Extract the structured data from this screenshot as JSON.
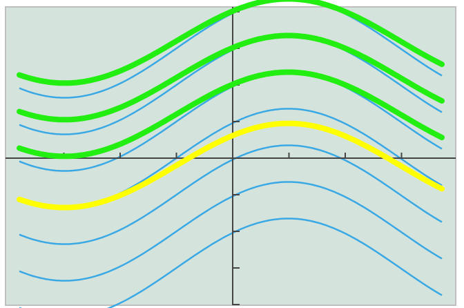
{
  "colors": {
    "background": "#d4e4dc",
    "frame": "#bfbfbf",
    "axis": "#444444",
    "blue_curve": "#3aa8e4",
    "green_highlight": "#22ee11",
    "yellow_highlight": "#ffff00"
  },
  "chart_data": {
    "type": "line",
    "title": "",
    "xlabel": "",
    "ylabel": "",
    "xlim": [
      -4,
      4
    ],
    "ylim": [
      -4,
      4
    ],
    "grid": false,
    "legend": "none",
    "x_ticks": [
      -3,
      -2,
      -1,
      1,
      2,
      3
    ],
    "y_ticks": [
      -4,
      -3,
      -2,
      -1,
      1,
      2,
      3,
      4
    ],
    "tick_labels_shown": false,
    "curve_shape": "y = 1.35*sin(0.79*(x + 1)) + k",
    "series": [
      {
        "color": "blue",
        "vertical_shift": 3.0
      },
      {
        "color": "blue",
        "vertical_shift": 2.0
      },
      {
        "color": "blue",
        "vertical_shift": 1.0
      },
      {
        "color": "blue",
        "vertical_shift": 0.0
      },
      {
        "color": "blue",
        "vertical_shift": -1.0
      },
      {
        "color": "blue",
        "vertical_shift": -2.0
      },
      {
        "color": "blue",
        "vertical_shift": -3.0
      }
    ],
    "highlights": [
      {
        "color": "green",
        "vertical_shift": 3.2,
        "amplitude": 1.0
      },
      {
        "color": "green",
        "vertical_shift": 2.2,
        "amplitude": 1.0
      },
      {
        "color": "green",
        "vertical_shift": 1.2,
        "amplitude": 1.0
      },
      {
        "color": "yellow",
        "vertical_shift": -0.2,
        "amplitude": 1.0
      }
    ]
  }
}
